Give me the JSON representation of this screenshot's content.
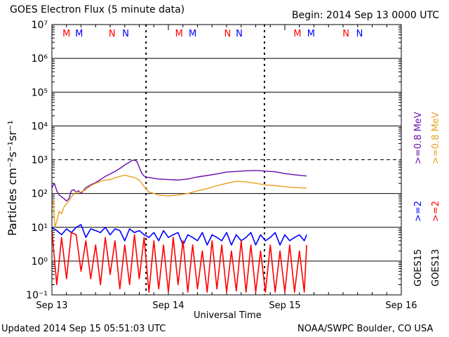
{
  "header": {
    "title": "GOES Electron Flux (5 minute data)",
    "begin": "Begin: 2014 Sep 13 0000 UTC"
  },
  "footer": {
    "updated": "Updated 2014 Sep 15 05:51:03 UTC",
    "credit": "NOAA/SWPC Boulder, CO USA"
  },
  "colors": {
    "goes15_08": "#6a0dad",
    "goes13_08": "#e8a020",
    "goes15_2": "#0000ff",
    "goes13_2": "#ff0000",
    "marker_M": "#ff0000",
    "marker_N": "#0000ff"
  },
  "chart_data": {
    "type": "line",
    "xlabel": "Universal Time",
    "ylabel": "Particles cm⁻²s⁻¹sr⁻¹",
    "x_ticks": [
      "Sep 13",
      "Sep 14",
      "Sep 15",
      "Sep 16"
    ],
    "xlim_hours": [
      0,
      72
    ],
    "ylim_log10": [
      -1,
      7
    ],
    "y_scale": "log",
    "y_tick_labels": [
      "10⁻¹",
      "10⁰",
      "10¹",
      "10²",
      "10³",
      "10⁴",
      "10⁵",
      "10⁶",
      "10⁷"
    ],
    "threshold": 1000,
    "grid": true,
    "legend_right": {
      "left_column": [
        {
          "label": "GOES15",
          "color": "#000000"
        },
        {
          "label": ">=2",
          "color": "#0000ff"
        },
        {
          "label": ">=0.8  MeV",
          "color": "#6a0dad"
        }
      ],
      "right_column": [
        {
          "label": "GOES13",
          "color": "#000000"
        },
        {
          "label": ">=2",
          "color": "#ff0000"
        },
        {
          "label": ">=0.8  MeV",
          "color": "#e8a020"
        }
      ]
    },
    "top_markers": [
      {
        "label": "M",
        "hour": 3.0,
        "color": "#ff0000"
      },
      {
        "label": "M",
        "hour": 5.6,
        "color": "#0000ff"
      },
      {
        "label": "N",
        "hour": 12.4,
        "color": "#ff0000"
      },
      {
        "label": "N",
        "hour": 15.2,
        "color": "#0000ff"
      },
      {
        "label": "M",
        "hour": 26.2,
        "color": "#ff0000"
      },
      {
        "label": "M",
        "hour": 29.0,
        "color": "#0000ff"
      },
      {
        "label": "N",
        "hour": 36.2,
        "color": "#ff0000"
      },
      {
        "label": "N",
        "hour": 38.6,
        "color": "#0000ff"
      },
      {
        "label": "M",
        "hour": 50.6,
        "color": "#ff0000"
      },
      {
        "label": "M",
        "hour": 53.4,
        "color": "#0000ff"
      },
      {
        "label": "N",
        "hour": 60.6,
        "color": "#ff0000"
      },
      {
        "label": "N",
        "hour": 63.4,
        "color": "#0000ff"
      }
    ],
    "midnight_dashes_hours": [
      19.4,
      43.8
    ],
    "series": [
      {
        "name": "GOES15 >=0.8 MeV",
        "color": "#6a0dad",
        "x_hours": [
          0,
          0.5,
          1,
          1.5,
          2,
          2.5,
          3,
          3.5,
          4,
          4.5,
          5,
          5.5,
          6,
          7,
          8,
          9,
          10,
          11,
          12,
          13,
          14,
          15,
          16,
          16.5,
          17,
          17.5,
          18,
          18.5,
          19,
          19.5,
          20,
          21,
          22,
          24,
          26,
          28,
          30,
          32,
          34,
          36,
          38,
          40,
          42,
          44,
          46,
          48,
          50,
          52.5
        ],
        "y": [
          150,
          200,
          120,
          90,
          80,
          70,
          60,
          70,
          120,
          130,
          110,
          120,
          100,
          150,
          180,
          210,
          260,
          320,
          380,
          450,
          550,
          700,
          850,
          950,
          980,
          900,
          600,
          400,
          330,
          300,
          300,
          280,
          270,
          260,
          250,
          270,
          310,
          340,
          380,
          430,
          450,
          470,
          480,
          460,
          440,
          390,
          360,
          330
        ]
      },
      {
        "name": "GOES13 >=0.8 MeV",
        "color": "#e8a020",
        "x_hours": [
          0,
          0.3,
          0.6,
          1,
          1.5,
          2,
          2.5,
          3,
          3.5,
          4,
          5,
          6,
          7,
          8,
          9,
          10,
          11,
          12,
          13,
          14,
          15,
          16,
          17,
          18,
          18.5,
          19,
          20,
          21,
          22,
          24,
          26,
          28,
          30,
          32,
          34,
          36,
          38,
          40,
          42,
          44,
          46,
          48,
          50,
          52.5
        ],
        "y": [
          50,
          60,
          10,
          15,
          30,
          25,
          40,
          50,
          60,
          80,
          110,
          110,
          130,
          170,
          200,
          230,
          250,
          260,
          290,
          320,
          350,
          320,
          300,
          250,
          200,
          160,
          110,
          100,
          90,
          85,
          90,
          100,
          120,
          140,
          170,
          200,
          230,
          220,
          200,
          180,
          170,
          160,
          150,
          145
        ]
      },
      {
        "name": "GOES15 >=2",
        "color": "#0000ff",
        "x_hours": [
          0,
          1,
          2,
          3,
          4,
          5,
          6,
          7,
          8,
          9,
          10,
          11,
          12,
          13,
          14,
          15,
          16,
          17,
          18,
          19,
          20,
          21,
          22,
          23,
          24,
          25,
          26,
          27,
          28,
          29,
          30,
          31,
          32,
          33,
          34,
          35,
          36,
          37,
          38,
          39,
          40,
          41,
          42,
          43,
          44,
          45,
          46,
          47,
          48,
          49,
          50,
          51,
          52,
          52.5
        ],
        "y": [
          10,
          8,
          6,
          9,
          7,
          10,
          12,
          5,
          9,
          8,
          7,
          10,
          6,
          9,
          8,
          4,
          9,
          7,
          8,
          6,
          5,
          7,
          4,
          8,
          5,
          6,
          7,
          3,
          6,
          5,
          4,
          7,
          3,
          6,
          5,
          4,
          7,
          3,
          6,
          4,
          5,
          7,
          3,
          6,
          4,
          5,
          7,
          3,
          6,
          4,
          5,
          6,
          4,
          6
        ]
      },
      {
        "name": "GOES13 >=2",
        "color": "#ff0000",
        "x_hours": [
          0,
          1,
          2,
          3,
          4,
          5,
          6,
          7,
          8,
          9,
          10,
          11,
          12,
          13,
          14,
          15,
          16,
          17,
          18,
          19,
          20,
          21,
          22,
          23,
          24,
          25,
          26,
          27,
          28,
          29,
          30,
          31,
          32,
          33,
          34,
          35,
          36,
          37,
          38,
          39,
          40,
          41,
          42,
          43,
          44,
          45,
          46,
          47,
          48,
          49,
          50,
          51,
          52,
          52.5
        ],
        "y": [
          8,
          0.2,
          5,
          0.3,
          7,
          6,
          0.5,
          4,
          0.3,
          3,
          0.2,
          5,
          0.4,
          4,
          0.15,
          3,
          0.2,
          6,
          0.3,
          5,
          0.12,
          4,
          0.15,
          3,
          0.12,
          5,
          0.2,
          4,
          0.12,
          3,
          0.15,
          2,
          0.12,
          4,
          0.15,
          3,
          0.12,
          2,
          0.13,
          4,
          0.12,
          3,
          0.12,
          2,
          0.12,
          3,
          0.12,
          2,
          0.12,
          3,
          0.12,
          2,
          0.12,
          3
        ]
      }
    ]
  }
}
